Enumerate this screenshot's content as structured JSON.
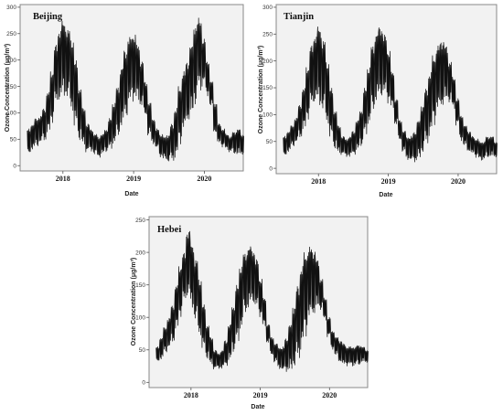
{
  "chart_data": [
    {
      "type": "line",
      "title": "Beijing",
      "xlabel": "Date",
      "ylabel": "Ozone Concentration (μg/m³)",
      "ylim": [
        -10,
        305
      ],
      "yticks": [
        0,
        50,
        100,
        150,
        200,
        250,
        300
      ],
      "xlim": [
        "2017-05-25",
        "2020-07-20"
      ],
      "xticks": [
        {
          "date": "2018-01-01",
          "label": "2018"
        },
        {
          "date": "2019-01-01",
          "label": "2019"
        },
        {
          "date": "2020-01-01",
          "label": "2020"
        }
      ],
      "series": [
        {
          "x": [
            "2017-07-01",
            "2017-07-21",
            "2017-08-10",
            "2017-08-30",
            "2017-09-19",
            "2017-10-09",
            "2017-10-29",
            "2017-11-18",
            "2017-12-08",
            "2017-12-28",
            "2018-01-17",
            "2018-02-06",
            "2018-02-26",
            "2018-03-18",
            "2018-04-07",
            "2018-04-27",
            "2018-05-17",
            "2018-06-06",
            "2018-06-26",
            "2018-07-16",
            "2018-08-05",
            "2018-08-25",
            "2018-09-14",
            "2018-10-04",
            "2018-10-24",
            "2018-11-13",
            "2018-12-03",
            "2018-12-23",
            "2019-01-12",
            "2019-02-01",
            "2019-02-21",
            "2019-03-13",
            "2019-04-02",
            "2019-04-22",
            "2019-05-12",
            "2019-06-01",
            "2019-06-21",
            "2019-07-11",
            "2019-07-31",
            "2019-08-20",
            "2019-09-09",
            "2019-09-29",
            "2019-10-19",
            "2019-11-08",
            "2019-11-28",
            "2019-12-18",
            "2020-01-07",
            "2020-01-27",
            "2020-02-16",
            "2020-03-07",
            "2020-03-27",
            "2020-04-16",
            "2020-05-06",
            "2020-05-26",
            "2020-06-15",
            "2020-07-05"
          ],
          "low": [
            18,
            30,
            35,
            40,
            45,
            60,
            80,
            110,
            120,
            125,
            120,
            100,
            70,
            45,
            35,
            25,
            25,
            20,
            15,
            20,
            25,
            30,
            40,
            50,
            70,
            90,
            110,
            120,
            120,
            110,
            90,
            55,
            40,
            30,
            15,
            10,
            5,
            5,
            15,
            40,
            60,
            80,
            90,
            110,
            140,
            150,
            130,
            110,
            60,
            40,
            35,
            30,
            25,
            20,
            18,
            20
          ],
          "high": [
            70,
            80,
            90,
            95,
            110,
            140,
            180,
            230,
            260,
            275,
            260,
            240,
            200,
            150,
            110,
            80,
            70,
            60,
            55,
            60,
            70,
            90,
            120,
            150,
            190,
            220,
            245,
            250,
            230,
            200,
            160,
            120,
            90,
            70,
            60,
            55,
            60,
            80,
            110,
            150,
            180,
            200,
            230,
            270,
            280,
            240,
            200,
            160,
            120,
            80,
            70,
            60,
            55,
            65,
            70,
            60
          ]
        }
      ]
    },
    {
      "type": "line",
      "title": "Tianjin",
      "xlabel": "Date",
      "ylabel": "Ozone Concentration (μg/m³)",
      "ylim": [
        -10,
        305
      ],
      "yticks": [
        0,
        50,
        100,
        150,
        200,
        250,
        300
      ],
      "xlim": [
        "2017-05-25",
        "2020-07-20"
      ],
      "xticks": [
        {
          "date": "2018-01-01",
          "label": "2018"
        },
        {
          "date": "2019-01-01",
          "label": "2019"
        },
        {
          "date": "2020-01-01",
          "label": "2020"
        }
      ],
      "series": [
        {
          "x": [
            "2017-07-01",
            "2017-07-21",
            "2017-08-10",
            "2017-08-30",
            "2017-09-19",
            "2017-10-09",
            "2017-10-29",
            "2017-11-18",
            "2017-12-08",
            "2017-12-28",
            "2018-01-17",
            "2018-02-06",
            "2018-02-26",
            "2018-03-18",
            "2018-04-07",
            "2018-04-27",
            "2018-05-17",
            "2018-06-06",
            "2018-06-26",
            "2018-07-16",
            "2018-08-05",
            "2018-08-25",
            "2018-09-14",
            "2018-10-04",
            "2018-10-24",
            "2018-11-13",
            "2018-12-03",
            "2018-12-23",
            "2019-01-12",
            "2019-02-01",
            "2019-02-21",
            "2019-03-13",
            "2019-04-02",
            "2019-04-22",
            "2019-05-12",
            "2019-06-01",
            "2019-06-21",
            "2019-07-11",
            "2019-07-31",
            "2019-08-20",
            "2019-09-09",
            "2019-09-29",
            "2019-10-19",
            "2019-11-08",
            "2019-11-28",
            "2019-12-18",
            "2020-01-07",
            "2020-01-27",
            "2020-02-16",
            "2020-03-07",
            "2020-03-27",
            "2020-04-16",
            "2020-05-06",
            "2020-05-26",
            "2020-06-15",
            "2020-07-05"
          ],
          "low": [
            20,
            30,
            40,
            45,
            55,
            70,
            90,
            110,
            120,
            110,
            100,
            80,
            55,
            35,
            25,
            25,
            20,
            20,
            25,
            30,
            40,
            60,
            80,
            100,
            120,
            130,
            130,
            120,
            110,
            80,
            50,
            30,
            15,
            10,
            10,
            15,
            25,
            40,
            60,
            80,
            100,
            110,
            120,
            120,
            110,
            80,
            50,
            40,
            30,
            25,
            20,
            15,
            15,
            18,
            20,
            20
          ],
          "high": [
            60,
            70,
            80,
            95,
            120,
            150,
            190,
            230,
            250,
            265,
            240,
            200,
            150,
            110,
            80,
            60,
            55,
            60,
            70,
            90,
            110,
            150,
            190,
            230,
            255,
            265,
            250,
            220,
            180,
            130,
            90,
            70,
            60,
            60,
            70,
            90,
            120,
            150,
            180,
            210,
            230,
            240,
            230,
            200,
            170,
            130,
            100,
            80,
            70,
            60,
            55,
            50,
            50,
            60,
            60,
            50
          ]
        }
      ]
    },
    {
      "type": "line",
      "title": "Hebei",
      "xlabel": "Date",
      "ylabel": "Ozone Concentration (μg/m³)",
      "ylim": [
        -8,
        255
      ],
      "yticks": [
        0,
        50,
        100,
        150,
        200,
        250
      ],
      "xlim": [
        "2017-05-25",
        "2020-07-20"
      ],
      "xticks": [
        {
          "date": "2018-01-01",
          "label": "2018"
        },
        {
          "date": "2019-01-01",
          "label": "2019"
        },
        {
          "date": "2020-01-01",
          "label": "2020"
        }
      ],
      "series": [
        {
          "x": [
            "2017-07-01",
            "2017-07-21",
            "2017-08-10",
            "2017-08-30",
            "2017-09-19",
            "2017-10-09",
            "2017-10-29",
            "2017-11-18",
            "2017-12-08",
            "2017-12-28",
            "2018-01-17",
            "2018-02-06",
            "2018-02-26",
            "2018-03-18",
            "2018-04-07",
            "2018-04-27",
            "2018-05-17",
            "2018-06-06",
            "2018-06-26",
            "2018-07-16",
            "2018-08-05",
            "2018-08-25",
            "2018-09-14",
            "2018-10-04",
            "2018-10-24",
            "2018-11-13",
            "2018-12-03",
            "2018-12-23",
            "2019-01-12",
            "2019-02-01",
            "2019-02-21",
            "2019-03-13",
            "2019-04-02",
            "2019-04-22",
            "2019-05-12",
            "2019-06-01",
            "2019-06-21",
            "2019-07-11",
            "2019-07-31",
            "2019-08-20",
            "2019-09-09",
            "2019-09-29",
            "2019-10-19",
            "2019-11-08",
            "2019-11-28",
            "2019-12-18",
            "2020-01-07",
            "2020-01-27",
            "2020-02-16",
            "2020-03-07",
            "2020-03-27",
            "2020-04-16",
            "2020-05-06",
            "2020-05-26",
            "2020-06-15",
            "2020-07-05"
          ],
          "low": [
            30,
            35,
            45,
            50,
            60,
            80,
            100,
            120,
            130,
            110,
            90,
            70,
            50,
            35,
            25,
            20,
            20,
            20,
            25,
            30,
            45,
            60,
            80,
            100,
            110,
            120,
            110,
            100,
            85,
            60,
            40,
            30,
            20,
            15,
            15,
            15,
            20,
            30,
            50,
            70,
            90,
            100,
            110,
            110,
            95,
            70,
            50,
            40,
            30,
            25,
            25,
            25,
            25,
            25,
            30,
            30
          ],
          "high": [
            55,
            70,
            85,
            100,
            120,
            150,
            180,
            200,
            235,
            215,
            190,
            160,
            120,
            90,
            70,
            50,
            45,
            50,
            65,
            90,
            120,
            150,
            180,
            200,
            210,
            205,
            190,
            160,
            130,
            90,
            70,
            60,
            55,
            55,
            70,
            90,
            120,
            150,
            180,
            200,
            210,
            205,
            190,
            160,
            130,
            100,
            80,
            70,
            65,
            60,
            55,
            55,
            55,
            58,
            55,
            50
          ]
        }
      ]
    }
  ]
}
